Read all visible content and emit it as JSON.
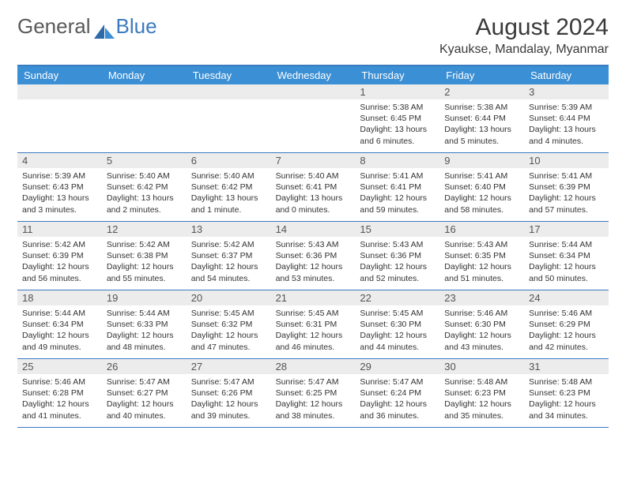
{
  "brand": {
    "part1": "General",
    "part2": "Blue"
  },
  "title": "August 2024",
  "location": "Kyaukse, Mandalay, Myanmar",
  "colors": {
    "header_bg": "#3b8fd4",
    "border": "#3b7bbf",
    "daynum_bg": "#ececec",
    "text": "#333333",
    "title_color": "#3a3a3a"
  },
  "day_labels": [
    "Sunday",
    "Monday",
    "Tuesday",
    "Wednesday",
    "Thursday",
    "Friday",
    "Saturday"
  ],
  "weeks": [
    [
      {
        "n": "",
        "sr": "",
        "ss": "",
        "dl": ""
      },
      {
        "n": "",
        "sr": "",
        "ss": "",
        "dl": ""
      },
      {
        "n": "",
        "sr": "",
        "ss": "",
        "dl": ""
      },
      {
        "n": "",
        "sr": "",
        "ss": "",
        "dl": ""
      },
      {
        "n": "1",
        "sr": "Sunrise: 5:38 AM",
        "ss": "Sunset: 6:45 PM",
        "dl": "Daylight: 13 hours and 6 minutes."
      },
      {
        "n": "2",
        "sr": "Sunrise: 5:38 AM",
        "ss": "Sunset: 6:44 PM",
        "dl": "Daylight: 13 hours and 5 minutes."
      },
      {
        "n": "3",
        "sr": "Sunrise: 5:39 AM",
        "ss": "Sunset: 6:44 PM",
        "dl": "Daylight: 13 hours and 4 minutes."
      }
    ],
    [
      {
        "n": "4",
        "sr": "Sunrise: 5:39 AM",
        "ss": "Sunset: 6:43 PM",
        "dl": "Daylight: 13 hours and 3 minutes."
      },
      {
        "n": "5",
        "sr": "Sunrise: 5:40 AM",
        "ss": "Sunset: 6:42 PM",
        "dl": "Daylight: 13 hours and 2 minutes."
      },
      {
        "n": "6",
        "sr": "Sunrise: 5:40 AM",
        "ss": "Sunset: 6:42 PM",
        "dl": "Daylight: 13 hours and 1 minute."
      },
      {
        "n": "7",
        "sr": "Sunrise: 5:40 AM",
        "ss": "Sunset: 6:41 PM",
        "dl": "Daylight: 13 hours and 0 minutes."
      },
      {
        "n": "8",
        "sr": "Sunrise: 5:41 AM",
        "ss": "Sunset: 6:41 PM",
        "dl": "Daylight: 12 hours and 59 minutes."
      },
      {
        "n": "9",
        "sr": "Sunrise: 5:41 AM",
        "ss": "Sunset: 6:40 PM",
        "dl": "Daylight: 12 hours and 58 minutes."
      },
      {
        "n": "10",
        "sr": "Sunrise: 5:41 AM",
        "ss": "Sunset: 6:39 PM",
        "dl": "Daylight: 12 hours and 57 minutes."
      }
    ],
    [
      {
        "n": "11",
        "sr": "Sunrise: 5:42 AM",
        "ss": "Sunset: 6:39 PM",
        "dl": "Daylight: 12 hours and 56 minutes."
      },
      {
        "n": "12",
        "sr": "Sunrise: 5:42 AM",
        "ss": "Sunset: 6:38 PM",
        "dl": "Daylight: 12 hours and 55 minutes."
      },
      {
        "n": "13",
        "sr": "Sunrise: 5:42 AM",
        "ss": "Sunset: 6:37 PM",
        "dl": "Daylight: 12 hours and 54 minutes."
      },
      {
        "n": "14",
        "sr": "Sunrise: 5:43 AM",
        "ss": "Sunset: 6:36 PM",
        "dl": "Daylight: 12 hours and 53 minutes."
      },
      {
        "n": "15",
        "sr": "Sunrise: 5:43 AM",
        "ss": "Sunset: 6:36 PM",
        "dl": "Daylight: 12 hours and 52 minutes."
      },
      {
        "n": "16",
        "sr": "Sunrise: 5:43 AM",
        "ss": "Sunset: 6:35 PM",
        "dl": "Daylight: 12 hours and 51 minutes."
      },
      {
        "n": "17",
        "sr": "Sunrise: 5:44 AM",
        "ss": "Sunset: 6:34 PM",
        "dl": "Daylight: 12 hours and 50 minutes."
      }
    ],
    [
      {
        "n": "18",
        "sr": "Sunrise: 5:44 AM",
        "ss": "Sunset: 6:34 PM",
        "dl": "Daylight: 12 hours and 49 minutes."
      },
      {
        "n": "19",
        "sr": "Sunrise: 5:44 AM",
        "ss": "Sunset: 6:33 PM",
        "dl": "Daylight: 12 hours and 48 minutes."
      },
      {
        "n": "20",
        "sr": "Sunrise: 5:45 AM",
        "ss": "Sunset: 6:32 PM",
        "dl": "Daylight: 12 hours and 47 minutes."
      },
      {
        "n": "21",
        "sr": "Sunrise: 5:45 AM",
        "ss": "Sunset: 6:31 PM",
        "dl": "Daylight: 12 hours and 46 minutes."
      },
      {
        "n": "22",
        "sr": "Sunrise: 5:45 AM",
        "ss": "Sunset: 6:30 PM",
        "dl": "Daylight: 12 hours and 44 minutes."
      },
      {
        "n": "23",
        "sr": "Sunrise: 5:46 AM",
        "ss": "Sunset: 6:30 PM",
        "dl": "Daylight: 12 hours and 43 minutes."
      },
      {
        "n": "24",
        "sr": "Sunrise: 5:46 AM",
        "ss": "Sunset: 6:29 PM",
        "dl": "Daylight: 12 hours and 42 minutes."
      }
    ],
    [
      {
        "n": "25",
        "sr": "Sunrise: 5:46 AM",
        "ss": "Sunset: 6:28 PM",
        "dl": "Daylight: 12 hours and 41 minutes."
      },
      {
        "n": "26",
        "sr": "Sunrise: 5:47 AM",
        "ss": "Sunset: 6:27 PM",
        "dl": "Daylight: 12 hours and 40 minutes."
      },
      {
        "n": "27",
        "sr": "Sunrise: 5:47 AM",
        "ss": "Sunset: 6:26 PM",
        "dl": "Daylight: 12 hours and 39 minutes."
      },
      {
        "n": "28",
        "sr": "Sunrise: 5:47 AM",
        "ss": "Sunset: 6:25 PM",
        "dl": "Daylight: 12 hours and 38 minutes."
      },
      {
        "n": "29",
        "sr": "Sunrise: 5:47 AM",
        "ss": "Sunset: 6:24 PM",
        "dl": "Daylight: 12 hours and 36 minutes."
      },
      {
        "n": "30",
        "sr": "Sunrise: 5:48 AM",
        "ss": "Sunset: 6:23 PM",
        "dl": "Daylight: 12 hours and 35 minutes."
      },
      {
        "n": "31",
        "sr": "Sunrise: 5:48 AM",
        "ss": "Sunset: 6:23 PM",
        "dl": "Daylight: 12 hours and 34 minutes."
      }
    ]
  ]
}
